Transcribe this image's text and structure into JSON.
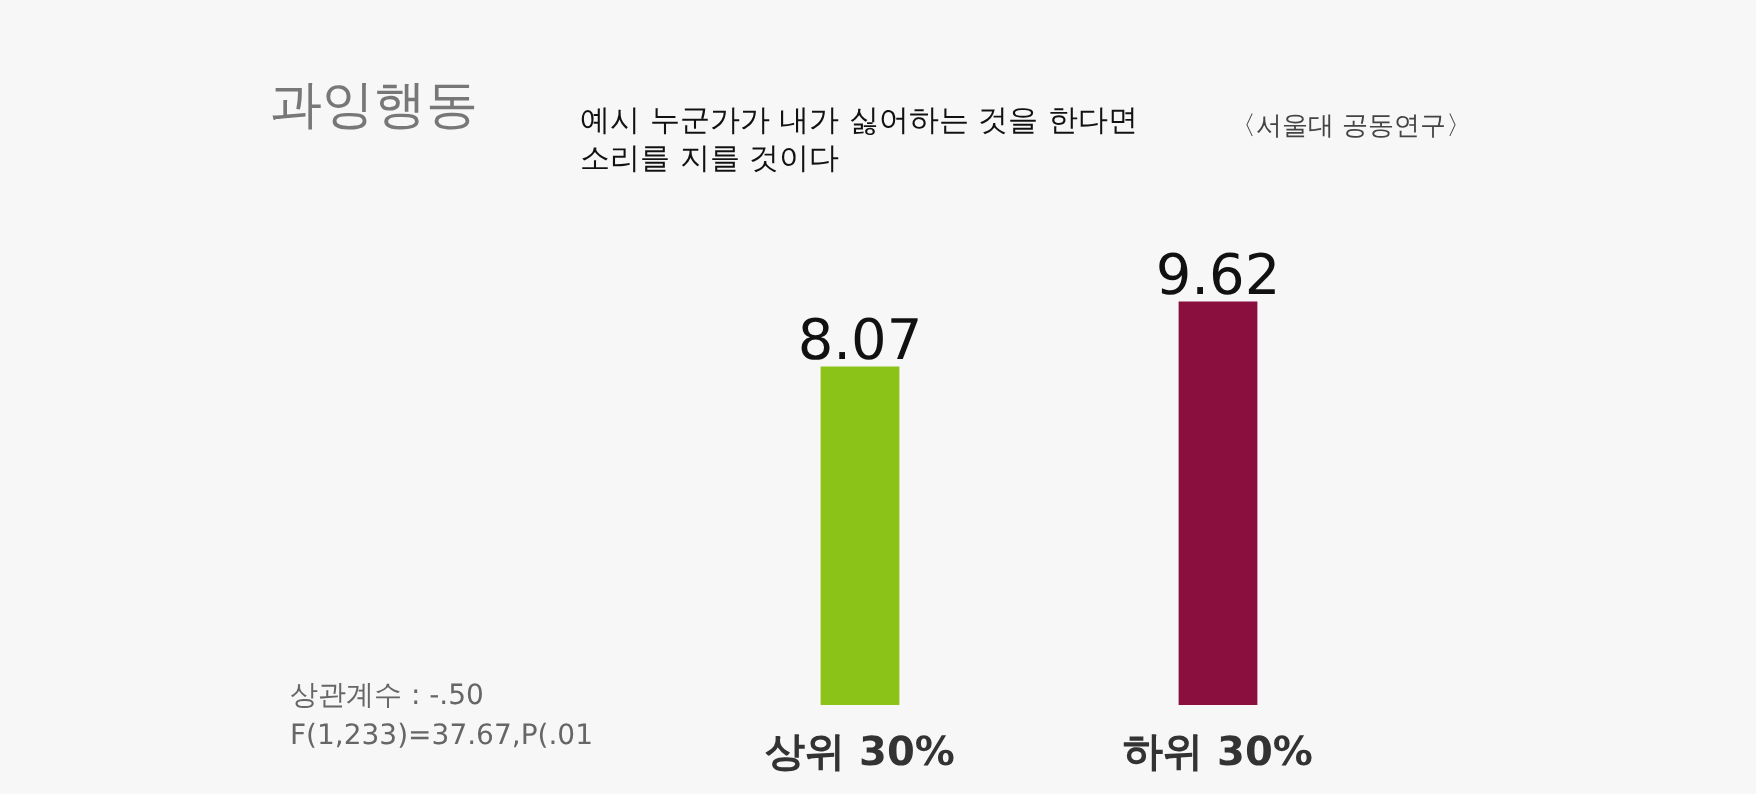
{
  "chart_data": {
    "type": "bar",
    "title": "과잉행동",
    "subtitle": "예시 누군가가 내가 싫어하는 것을 한다면 소리를 지를 것이다",
    "categories": [
      "상위 30%",
      "하위 30%"
    ],
    "values": [
      8.07,
      9.62
    ],
    "colors": [
      "#8cc318",
      "#8a0f3e"
    ],
    "data_labels": true,
    "annotations": [
      "〈서울대 공동연구〉",
      "상관계수 : -.50",
      "F(1,233)=37.67,P(.01"
    ]
  }
}
